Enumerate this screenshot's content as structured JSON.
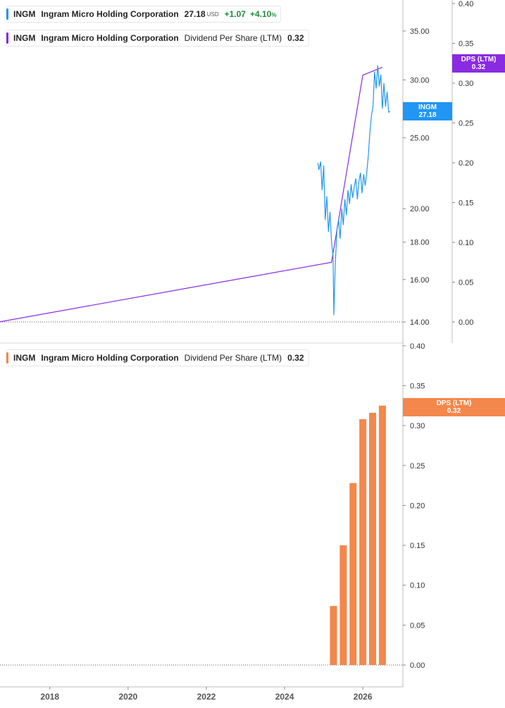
{
  "legends": {
    "price": {
      "ticker": "INGM",
      "company": "Ingram Micro Holding Corporation",
      "price": "27.18",
      "currency": "USD",
      "change": "+1.07",
      "change_pct": "+4.10",
      "pct_sign": "%",
      "color": "#2196f3"
    },
    "dps_top": {
      "ticker": "INGM",
      "company": "Ingram Micro Holding Corporation",
      "indicator": "Dividend Per Share (LTM)",
      "value": "0.32",
      "color": "#8a2be2"
    },
    "dps_bottom": {
      "ticker": "INGM",
      "company": "Ingram Micro Holding Corporation",
      "indicator": "Dividend Per Share (LTM)",
      "value": "0.32",
      "color": "#f4874b"
    }
  },
  "tags": {
    "price": {
      "line1": "INGM",
      "line2": "27.18",
      "color": "#2196f3"
    },
    "dps_top": {
      "line1": "DPS (LTM)",
      "line2": "0.32",
      "color": "#8a2be2"
    },
    "dps_bottom": {
      "line1": "DPS (LTM)",
      "line2": "0.32",
      "color": "#f4874b"
    }
  },
  "chart_data": [
    {
      "type": "line",
      "panel": "top",
      "price_axis": {
        "scale": "log",
        "range": [
          14.0,
          38.0
        ],
        "ticks": [
          "14.00",
          "16.00",
          "18.00",
          "20.00",
          "25.00",
          "30.00",
          "35.00"
        ]
      },
      "dps_axis": {
        "range": [
          0.0,
          0.4
        ],
        "ticks": [
          "0.00",
          "0.05",
          "0.10",
          "0.15",
          "0.20",
          "0.25",
          "0.30",
          "0.35",
          "0.40"
        ]
      },
      "series": [
        {
          "name": "INGM",
          "color": "#2196f3",
          "x": [
            2024.85,
            2024.88,
            2024.92,
            2024.96,
            2025.0,
            2025.04,
            2025.08,
            2025.12,
            2025.16,
            2025.2,
            2025.24,
            2025.26,
            2025.28,
            2025.3,
            2025.34,
            2025.38,
            2025.42,
            2025.46,
            2025.5,
            2025.54,
            2025.58,
            2025.62,
            2025.66,
            2025.7,
            2025.74,
            2025.78,
            2025.82,
            2025.86,
            2025.9,
            2025.94,
            2025.98,
            2026.02,
            2026.06,
            2026.1,
            2026.14,
            2026.18,
            2026.22,
            2026.26,
            2026.3,
            2026.34,
            2026.38,
            2026.42,
            2026.46,
            2026.5,
            2026.54,
            2026.58,
            2026.62,
            2026.66,
            2026.7
          ],
          "y": [
            23.1,
            22.6,
            23.2,
            21.2,
            22.9,
            19.3,
            20.8,
            18.6,
            19.8,
            18.0,
            17.2,
            14.3,
            15.8,
            17.0,
            18.8,
            19.3,
            18.2,
            20.0,
            19.0,
            20.6,
            19.6,
            21.2,
            20.3,
            21.6,
            20.7,
            21.4,
            22.0,
            20.6,
            21.8,
            22.4,
            21.0,
            22.3,
            21.5,
            22.4,
            23.6,
            25.4,
            26.8,
            27.6,
            30.8,
            29.2,
            31.4,
            29.4,
            30.5,
            27.4,
            29.7,
            27.6,
            28.9,
            27.1,
            27.18
          ]
        },
        {
          "name": "DPS (LTM)",
          "color": "#8a2be2",
          "x": [
            2016.7,
            2025.2,
            2026.0,
            2026.5
          ],
          "y": [
            0.0,
            0.075,
            0.31,
            0.32
          ]
        }
      ]
    },
    {
      "type": "bar",
      "panel": "bottom",
      "axis": {
        "range": [
          0.0,
          0.4
        ],
        "ticks": [
          "0.00",
          "0.05",
          "0.10",
          "0.15",
          "0.20",
          "0.25",
          "0.30",
          "0.35",
          "0.40"
        ]
      },
      "x_ticks": [
        "2018",
        "2020",
        "2022",
        "2024",
        "2026"
      ],
      "series": [
        {
          "name": "DPS (LTM)",
          "color": "#f4874b",
          "x": [
            2025.25,
            2025.5,
            2025.75,
            2026.0,
            2026.25,
            2026.5
          ],
          "values": [
            0.074,
            0.15,
            0.228,
            0.308,
            0.316,
            0.325
          ]
        }
      ]
    }
  ]
}
